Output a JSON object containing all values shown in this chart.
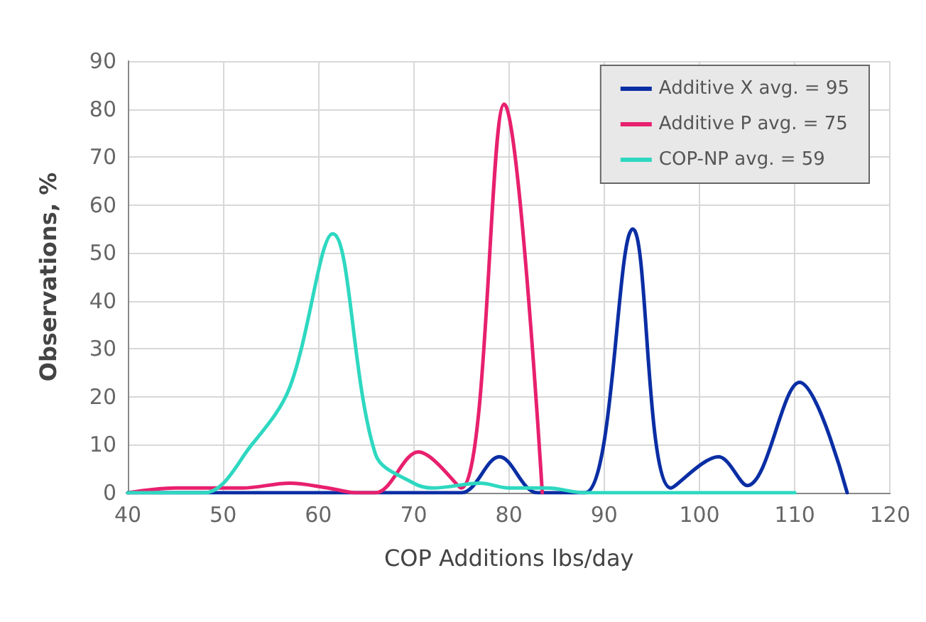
{
  "chart_data": {
    "type": "line",
    "xlabel": "COP Additions lbs/day",
    "ylabel": "Observations, %",
    "xlim": [
      40,
      120
    ],
    "xticks": [
      40,
      50,
      60,
      70,
      80,
      90,
      100,
      110,
      120
    ],
    "ylim": [
      0,
      90
    ],
    "yticks": [
      0,
      10,
      20,
      30,
      40,
      50,
      60,
      70,
      80,
      90
    ],
    "grid": true,
    "legend": "top right",
    "marker": "none",
    "line_style": "solid",
    "series": [
      {
        "name": "Additive X avg. = 95",
        "color": "#0a2ea4",
        "x": [
          40,
          50,
          60,
          70,
          75,
          79,
          83,
          88,
          93,
          97,
          102,
          105,
          110.5,
          115.5
        ],
        "values": [
          0,
          0,
          0,
          0,
          0,
          7.5,
          0,
          0,
          55,
          1,
          7.5,
          1.5,
          23,
          0
        ]
      },
      {
        "name": "Additive P avg. = 75",
        "color": "#e8206e",
        "x": [
          40,
          45,
          52,
          57,
          61,
          64,
          66,
          70.5,
          75,
          79.5,
          83.5
        ],
        "values": [
          0,
          1,
          1,
          2,
          1,
          0,
          0,
          8.5,
          1,
          81,
          0
        ]
      },
      {
        "name": "COP-NP avg. = 59",
        "color": "#2ed8c0",
        "x": [
          40,
          48,
          53,
          57,
          61.5,
          66,
          70,
          72,
          77,
          80,
          84,
          88,
          100,
          110
        ],
        "values": [
          0,
          0,
          10,
          22,
          54,
          8,
          2,
          1,
          2,
          1,
          1,
          0,
          0,
          0
        ]
      }
    ]
  }
}
